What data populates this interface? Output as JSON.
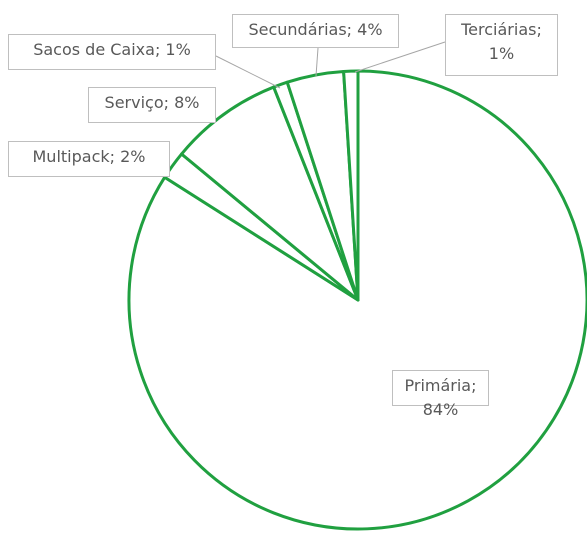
{
  "chart_data": {
    "type": "pie",
    "values": [
      84,
      2,
      8,
      1,
      4,
      1
    ],
    "value_labels": [
      "Primária; 84%",
      "Multipack; 2%",
      "Serviço; 8%",
      "Sacos de Caixa; 1%",
      "Secundárias; 4%",
      "Terciárias; 1%"
    ],
    "color": "#ffffff",
    "edge_color": "#20a040"
  }
}
